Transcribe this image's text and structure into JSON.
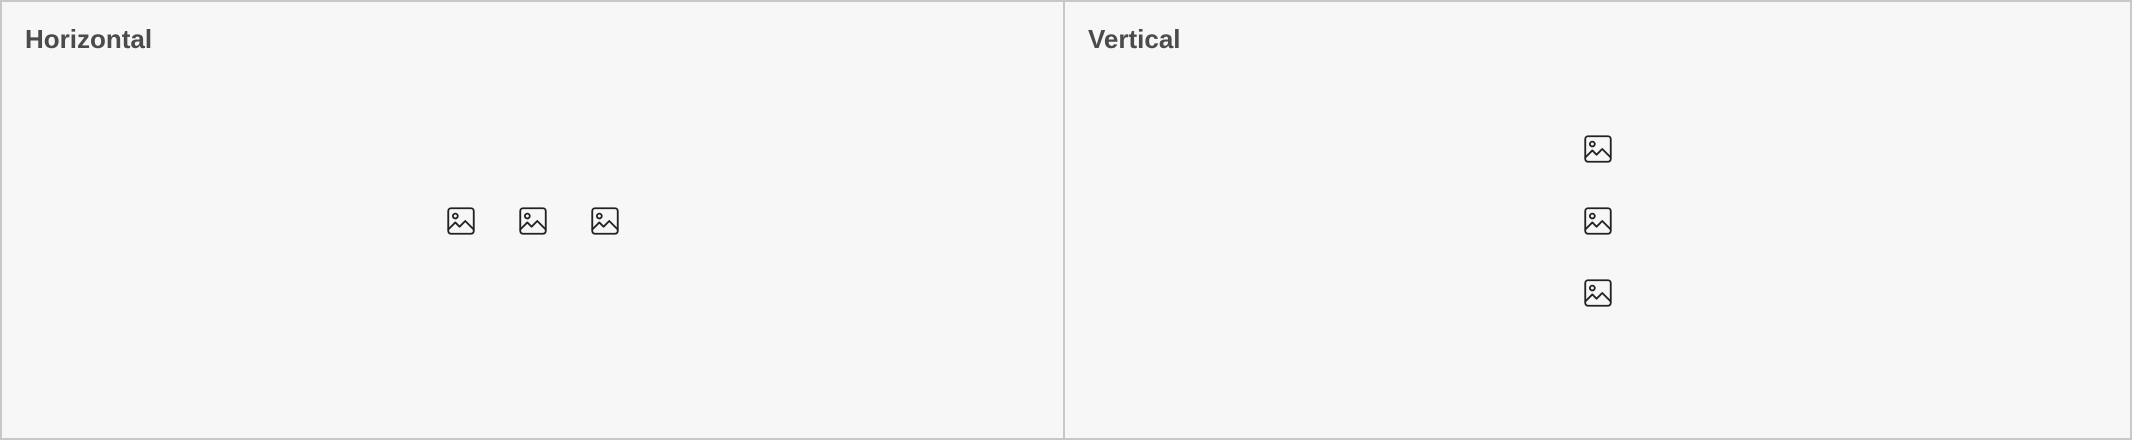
{
  "panels": {
    "horizontal": {
      "title": "Horizontal",
      "icons": [
        "image-icon",
        "image-icon",
        "image-icon"
      ]
    },
    "vertical": {
      "title": "Vertical",
      "icons": [
        "image-icon",
        "image-icon",
        "image-icon"
      ]
    }
  },
  "colors": {
    "background": "#f7f7f7",
    "border": "#c8c8c8",
    "title": "#4b4b4b",
    "icon_stroke": "#222222"
  }
}
